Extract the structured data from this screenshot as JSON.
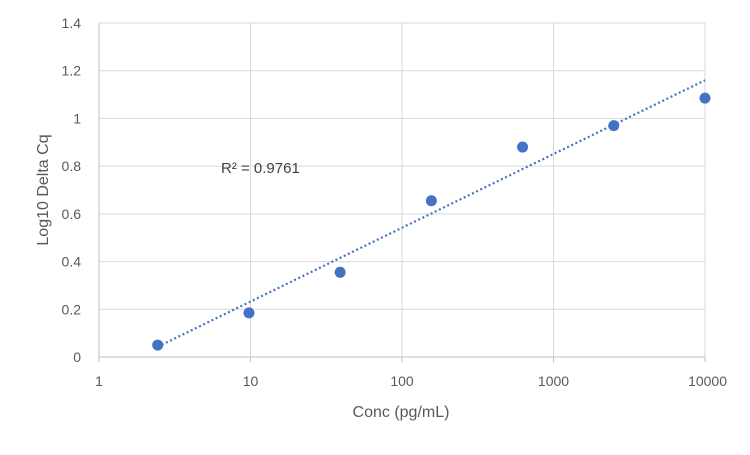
{
  "chart_data": {
    "type": "scatter",
    "title": "",
    "xlabel": "Conc (pg/mL)",
    "ylabel": "Log10 Delta Cq",
    "x_scale": "log",
    "xlim": [
      1,
      10000
    ],
    "ylim": [
      0,
      1.4
    ],
    "x_ticks": [
      "1",
      "10",
      "100",
      "1000",
      "10000"
    ],
    "y_ticks": [
      "0",
      "0.2",
      "0.4",
      "0.6",
      "0.8",
      "1",
      "1.2",
      "1.4"
    ],
    "grid": true,
    "legend": "none",
    "series": [
      {
        "x": [
          2.44,
          9.77,
          39.06,
          156.25,
          625,
          2500,
          10000
        ],
        "y": [
          0.05,
          0.185,
          0.355,
          0.655,
          0.88,
          0.97,
          1.085
        ],
        "color": "#4472c4"
      }
    ],
    "trendline": {
      "type": "log",
      "style": "dotted",
      "color": "#4472c4",
      "start": [
        2.44,
        0.043
      ],
      "end": [
        10000,
        1.16
      ]
    },
    "annotations": [
      {
        "text": "R² = 0.9761"
      }
    ]
  }
}
